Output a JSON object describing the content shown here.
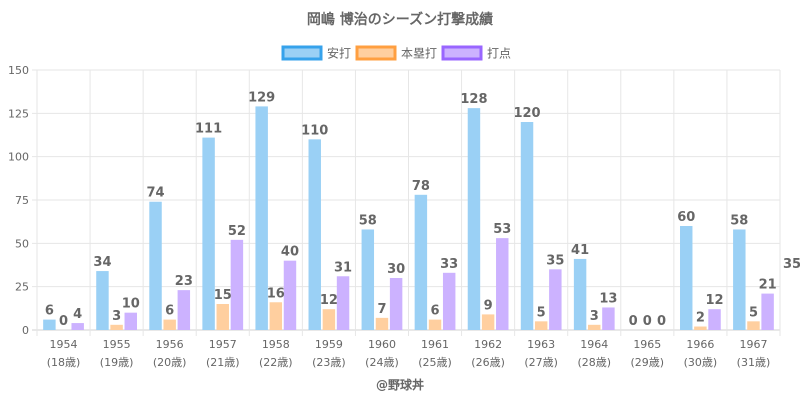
{
  "chart_data": {
    "type": "bar",
    "title": "岡嶋 博治のシーズン打撃成績",
    "categories": [
      "1954",
      "1955",
      "1956",
      "1957",
      "1958",
      "1959",
      "1960",
      "1961",
      "1962",
      "1963",
      "1964",
      "1965",
      "1966",
      "1967"
    ],
    "category_sublabels": [
      "(18歳)",
      "(19歳)",
      "(20歳)",
      "(21歳)",
      "(22歳)",
      "(23歳)",
      "(24歳)",
      "(25歳)",
      "(26歳)",
      "(27歳)",
      "(28歳)",
      "(29歳)",
      "(30歳)",
      "(31歳)"
    ],
    "series": [
      {
        "name": "安打",
        "values": [
          6,
          34,
          74,
          111,
          129,
          110,
          58,
          78,
          128,
          120,
          41,
          0,
          60,
          58
        ],
        "color": "#9ad0f5",
        "border": "#36a2eb"
      },
      {
        "name": "本塁打",
        "values": [
          0,
          3,
          6,
          15,
          16,
          12,
          7,
          6,
          9,
          5,
          3,
          0,
          2,
          5
        ],
        "color": "#ffcf9f",
        "border": "#ff9f40"
      },
      {
        "name": "打点",
        "values": [
          4,
          10,
          23,
          52,
          40,
          31,
          30,
          33,
          53,
          35,
          13,
          0,
          12,
          21
        ],
        "color": "#ccb2ff",
        "border": "#9966ff"
      }
    ],
    "ylim": [
      0,
      150
    ],
    "yticks": [
      0,
      25,
      50,
      75,
      100,
      125,
      150
    ],
    "grid": true,
    "legend": "top-center",
    "stray_label": "35"
  },
  "footer": {
    "credit": "@野球丼"
  }
}
